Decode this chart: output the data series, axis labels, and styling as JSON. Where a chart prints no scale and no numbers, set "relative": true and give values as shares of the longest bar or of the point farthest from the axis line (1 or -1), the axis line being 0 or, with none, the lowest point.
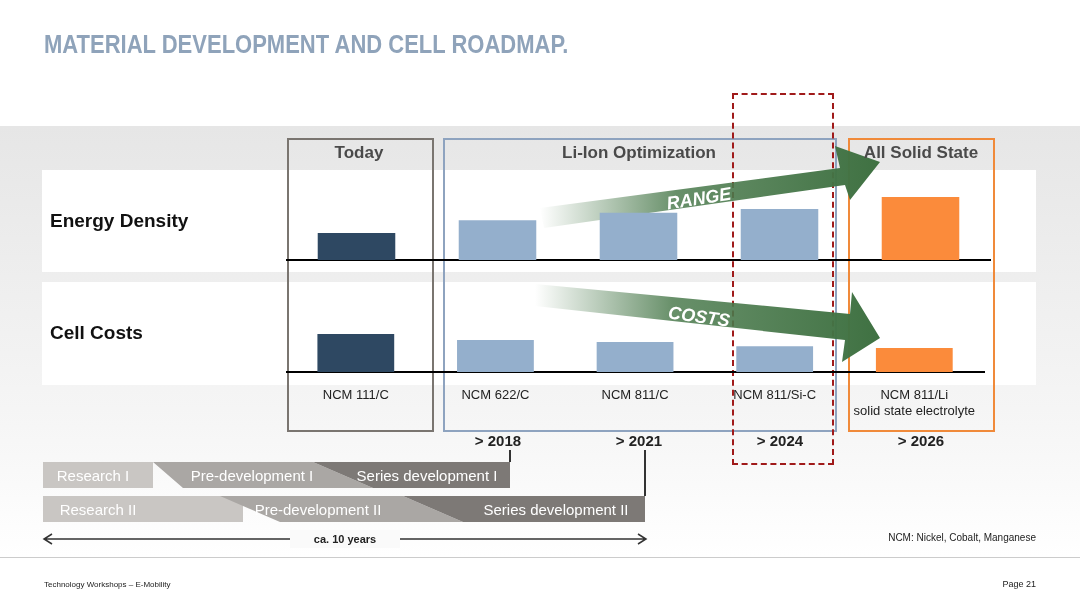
{
  "chart_data": [
    {
      "type": "bar",
      "title": "MATERIAL DEVELOPMENT AND CELL ROADMAP.",
      "ylabel": "Energy Density",
      "relative": true,
      "tick_labels": false,
      "categories": [
        null,
        null,
        null,
        null,
        null
      ],
      "values": [
        0.43,
        0.63,
        0.75,
        0.81,
        1
      ],
      "colors": [
        "#2e4862",
        "#94afcc",
        "#94afcc",
        "#94afcc",
        "#fb8b3b"
      ],
      "annotations": [
        "Today",
        "Li-Ion Optimization",
        "All Solid State",
        "RANGE"
      ]
    },
    {
      "type": "bar",
      "ylabel": "Cell Costs",
      "relative": true,
      "tick_labels": "x",
      "categories": [
        "NCM 111/C",
        "NCM 622/C",
        "NCM 811/C",
        "NCM 811/Si-C",
        "NCM 811/Li\nsolid state electrolyte"
      ],
      "values": [
        1,
        0.84,
        0.79,
        0.68,
        0.63
      ],
      "colors": [
        "#2e4862",
        "#94afcc",
        "#94afcc",
        "#94afcc",
        "#fb8b3b"
      ],
      "annotations": [
        "COSTS",
        "> 2018",
        "> 2021",
        "> 2024",
        "> 2026",
        "Research I",
        "Pre-development I",
        "Series development I",
        "Research II",
        "Pre-development II",
        "Series development II",
        "ca. 10 years",
        "NCM: Nickel, Cobalt, Manganese",
        "Technology Workshops – E-Mobility",
        "Page 21"
      ]
    }
  ]
}
